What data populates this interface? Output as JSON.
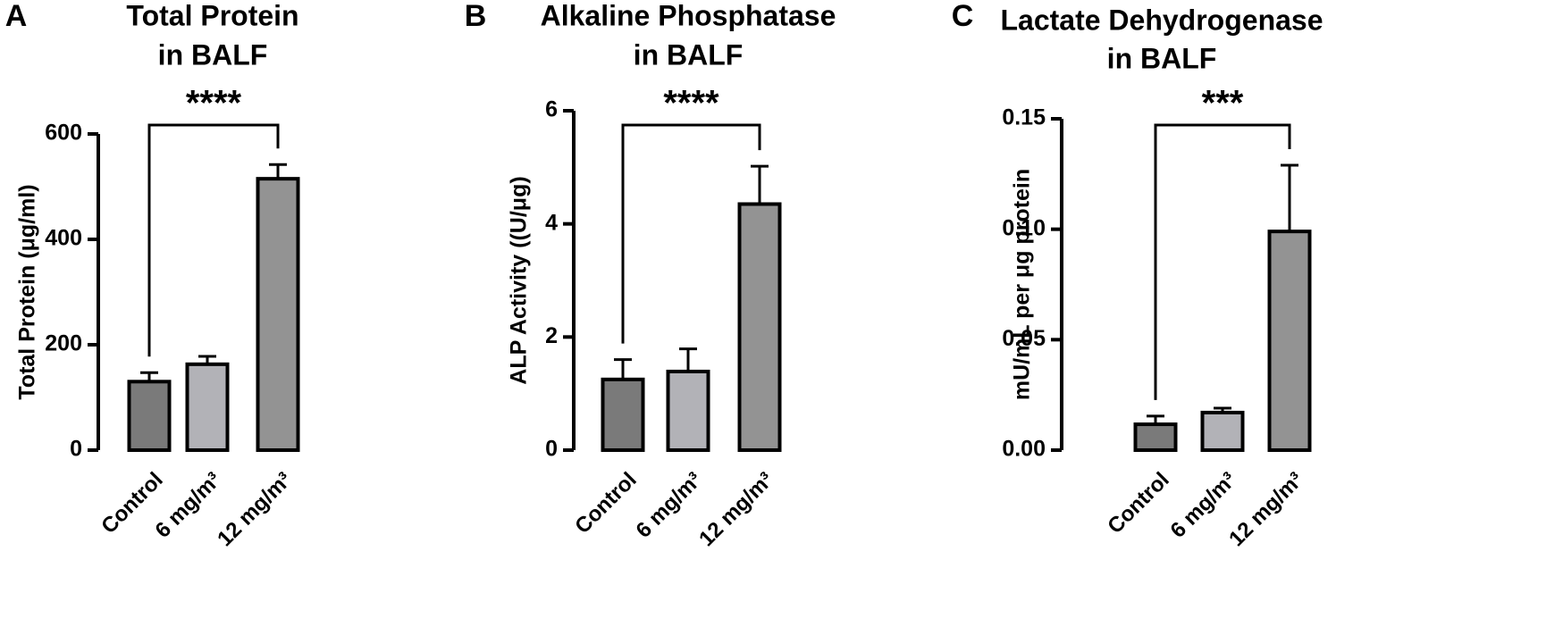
{
  "chart_data": [
    {
      "type": "bar",
      "label": "A",
      "title": [
        "Total Protein",
        "in BALF"
      ],
      "ylabel": "Total Protein (μg/ml)",
      "categories": [
        "Control",
        "6 mg/m³",
        "12 mg/m³"
      ],
      "values": [
        130,
        163,
        515
      ],
      "errors": [
        17,
        15,
        27
      ],
      "colors": [
        "#7a7a7a",
        "#b2b2b7",
        "#939393"
      ],
      "ylim": [
        0,
        600
      ],
      "yticks": [
        0,
        200,
        400,
        600
      ],
      "annotation": "****"
    },
    {
      "type": "bar",
      "label": "B",
      "title": [
        "Alkaline Phosphatase",
        "in BALF"
      ],
      "ylabel": "ALP Activity ((U/μg)",
      "categories": [
        "Control",
        "6 mg/m³",
        "12 mg/m³"
      ],
      "values": [
        1.25,
        1.39,
        4.35
      ],
      "errors": [
        0.35,
        0.4,
        0.67
      ],
      "colors": [
        "#7a7a7a",
        "#b2b2b7",
        "#939393"
      ],
      "ylim": [
        0,
        6
      ],
      "yticks": [
        0,
        2,
        4,
        6
      ],
      "annotation": "****"
    },
    {
      "type": "bar",
      "label": "C",
      "title": [
        "Lactate Dehydrogenase",
        "in BALF"
      ],
      "ylabel": "mU/mL per μg protein",
      "categories": [
        "Control",
        "6 mg/m³",
        "12 mg/m³"
      ],
      "values": [
        0.0117,
        0.017,
        0.099
      ],
      "errors": [
        0.0037,
        0.002,
        0.03
      ],
      "colors": [
        "#7a7a7a",
        "#b2b2b7",
        "#939393"
      ],
      "ylim": [
        0,
        0.15
      ],
      "yticks": [
        {
          "value": 0,
          "label": "0.00"
        },
        {
          "value": 0.05,
          "label": "0.05"
        },
        {
          "value": 0.1,
          "label": "0.10"
        },
        {
          "value": 0.15,
          "label": "0.15"
        }
      ],
      "annotation": "***"
    }
  ]
}
